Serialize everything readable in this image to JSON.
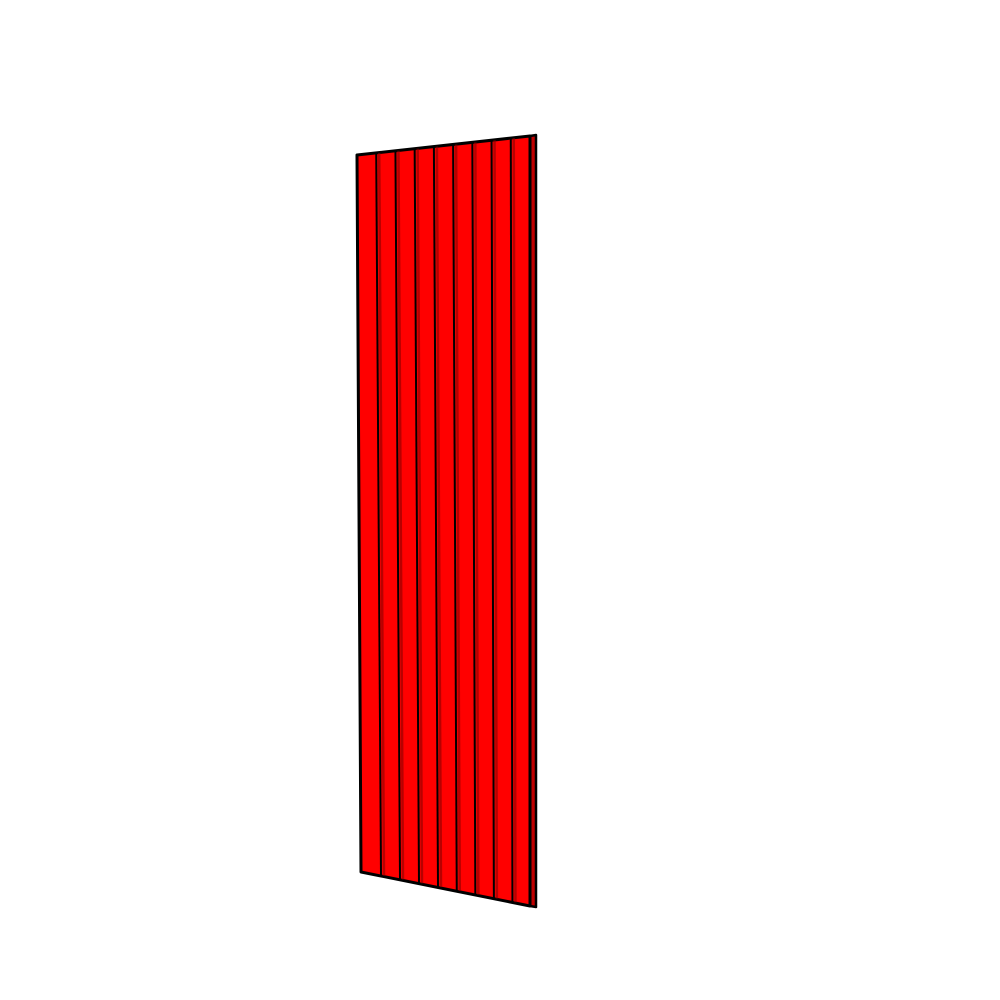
{
  "object": {
    "kind": "slatted-panel",
    "slat_count": 9,
    "colors": {
      "fill": "#ff0000",
      "groove_shade": "#8a0000",
      "outline": "#000000",
      "background": "#ffffff"
    }
  }
}
